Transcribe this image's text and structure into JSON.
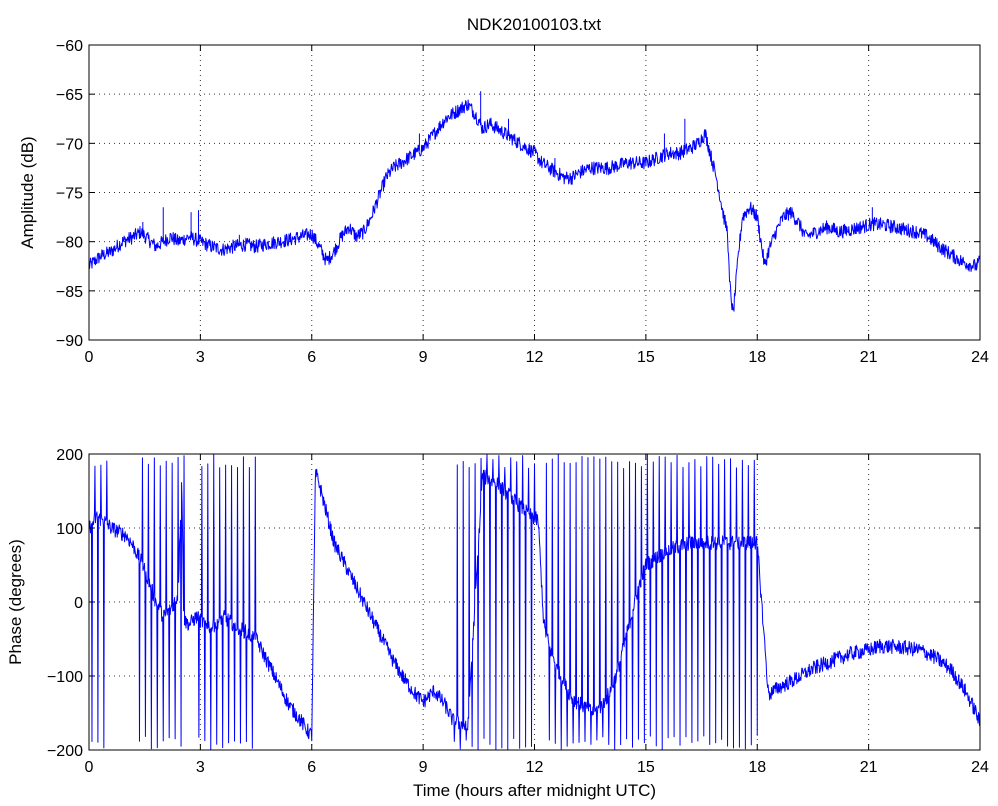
{
  "figure_title": "NDK20100103.txt",
  "colors": {
    "series": "#0000ff",
    "axes": "#000000",
    "background": "#ffffff"
  },
  "chart_data": [
    {
      "type": "line",
      "xlabel": "",
      "ylabel": "Amplitude (dB)",
      "xlim": [
        0,
        24
      ],
      "ylim": [
        -90,
        -60
      ],
      "xticks": [
        0,
        3,
        6,
        9,
        12,
        15,
        18,
        21,
        24
      ],
      "yticks": [
        -90,
        -85,
        -80,
        -75,
        -70,
        -65,
        -60
      ],
      "grid": true,
      "series": [
        {
          "noise": 0.7,
          "x": [
            0,
            0.3,
            0.6,
            0.9,
            1.2,
            1.4,
            1.6,
            1.8,
            2.0,
            2.2,
            2.4,
            2.7,
            3.0,
            3.3,
            3.6,
            3.9,
            4.2,
            4.5,
            4.8,
            5.1,
            5.4,
            5.7,
            6.0,
            6.2,
            6.4,
            6.6,
            6.8,
            7.0,
            7.2,
            7.4,
            7.6,
            7.8,
            8.0,
            8.2,
            8.4,
            8.6,
            8.8,
            9.0,
            9.2,
            9.4,
            9.6,
            9.8,
            10.0,
            10.2,
            10.4,
            10.6,
            10.8,
            11.0,
            11.2,
            11.4,
            11.6,
            11.8,
            12.0,
            12.2,
            12.4,
            12.6,
            12.8,
            13.0,
            13.2,
            13.5,
            14.0,
            14.5,
            15.0,
            15.3,
            15.6,
            15.9,
            16.2,
            16.4,
            16.5,
            16.6,
            16.7,
            16.8,
            16.9,
            17.0,
            17.1,
            17.2,
            17.25,
            17.35,
            17.5,
            17.6,
            17.8,
            18.0,
            18.1,
            18.2,
            18.3,
            18.5,
            18.7,
            18.9,
            19.1,
            19.3,
            19.6,
            19.9,
            20.2,
            20.5,
            20.8,
            21.1,
            21.4,
            21.7,
            22.0,
            22.3,
            22.6,
            22.9,
            23.1,
            23.3,
            23.5,
            23.7,
            23.9,
            24.0
          ],
          "y": [
            -82.5,
            -81.5,
            -81,
            -80,
            -79.5,
            -79,
            -79.8,
            -80.5,
            -80,
            -79.5,
            -80,
            -79.5,
            -80,
            -80.5,
            -80.8,
            -80.5,
            -80.3,
            -80.5,
            -80.2,
            -80,
            -79.8,
            -79.5,
            -79.2,
            -80.5,
            -82,
            -81,
            -79.5,
            -78.5,
            -79.5,
            -79,
            -77.5,
            -75.5,
            -73.5,
            -72.5,
            -72,
            -71.5,
            -71,
            -70.5,
            -69.5,
            -68.5,
            -67.5,
            -67,
            -66.5,
            -66,
            -67,
            -68.5,
            -68,
            -68.5,
            -69,
            -69.5,
            -70,
            -70.5,
            -71,
            -72,
            -72.5,
            -73,
            -73.5,
            -73.5,
            -73,
            -72.5,
            -72.5,
            -72,
            -72,
            -71.5,
            -71,
            -71,
            -70.5,
            -70,
            -69.5,
            -69,
            -70.5,
            -72,
            -73.5,
            -75.5,
            -77.5,
            -79,
            -84,
            -87.5,
            -81,
            -77.5,
            -76.5,
            -77.5,
            -80,
            -82.5,
            -81,
            -79,
            -77.5,
            -77,
            -78,
            -79.5,
            -79,
            -78.5,
            -79,
            -78.8,
            -78.5,
            -78.2,
            -78.3,
            -78.5,
            -78.8,
            -79,
            -79.5,
            -80.5,
            -81,
            -81.5,
            -82,
            -82.3,
            -82.5,
            -82
          ]
        }
      ],
      "spikes": [
        {
          "x": 1.45,
          "y": -78
        },
        {
          "x": 2.0,
          "y": -76.5
        },
        {
          "x": 2.75,
          "y": -77
        },
        {
          "x": 2.95,
          "y": -76.8
        },
        {
          "x": 4.05,
          "y": -79.3
        },
        {
          "x": 8.9,
          "y": -69
        },
        {
          "x": 10.55,
          "y": -64.7
        },
        {
          "x": 11.3,
          "y": -67.5
        },
        {
          "x": 12.55,
          "y": -71.5
        },
        {
          "x": 15.5,
          "y": -69
        },
        {
          "x": 16.05,
          "y": -67.5
        },
        {
          "x": 21.1,
          "y": -76.5
        }
      ]
    },
    {
      "type": "line",
      "xlabel": "Time (hours after midnight UTC)",
      "ylabel": "Phase (degrees)",
      "xlim": [
        0,
        24
      ],
      "ylim": [
        -200,
        200
      ],
      "xticks": [
        0,
        3,
        6,
        9,
        12,
        15,
        18,
        21,
        24
      ],
      "yticks": [
        -200,
        -100,
        0,
        100,
        200
      ],
      "grid": true,
      "series": [
        {
          "noise": 10,
          "x": [
            0,
            0.2,
            0.4,
            0.6,
            0.8,
            1.0,
            1.2,
            1.4,
            1.6,
            1.8,
            2.0,
            2.2,
            2.4,
            2.5,
            2.55,
            2.7,
            2.9,
            3.0,
            3.3,
            3.6,
            3.9,
            4.2,
            4.5,
            4.8,
            5.1,
            5.4,
            5.7,
            5.9,
            6.0,
            6.1,
            6.2,
            6.4,
            6.6,
            6.8,
            7.0,
            7.3,
            7.6,
            7.9,
            8.2,
            8.5,
            8.8,
            9.0,
            9.3,
            9.6,
            9.8,
            10.2,
            10.6,
            11.0,
            11.4,
            11.8,
            12.1,
            12.25,
            12.4,
            12.6,
            12.8,
            13.0,
            13.3,
            13.6,
            13.9,
            14.2,
            14.4,
            14.6,
            14.8,
            15.0,
            15.3,
            15.6,
            15.9,
            16.2,
            16.5,
            16.8,
            17.1,
            17.4,
            17.7,
            18.0,
            18.3,
            18.6,
            19.0,
            19.5,
            20.0,
            20.5,
            21.0,
            21.3,
            21.6,
            22.0,
            22.4,
            22.8,
            23.2,
            23.6,
            23.9,
            24.0
          ],
          "y": [
            100,
            115,
            110,
            100,
            95,
            90,
            75,
            55,
            30,
            0,
            -20,
            -10,
            10,
            170,
            -25,
            -30,
            -20,
            -25,
            -35,
            -20,
            -30,
            -40,
            -50,
            -80,
            -110,
            -140,
            -160,
            -175,
            -180,
            175,
            160,
            120,
            80,
            60,
            40,
            10,
            -20,
            -50,
            -80,
            -105,
            -125,
            -135,
            -120,
            -140,
            -160,
            -170,
            170,
            160,
            140,
            120,
            110,
            -30,
            -60,
            -90,
            -110,
            -130,
            -140,
            -150,
            -135,
            -100,
            -60,
            -20,
            20,
            50,
            60,
            70,
            75,
            80,
            80,
            80,
            80,
            80,
            80,
            80,
            -125,
            -115,
            -105,
            -90,
            -80,
            -70,
            -65,
            -60,
            -60,
            -62,
            -65,
            -75,
            -90,
            -120,
            -150,
            -165
          ]
        }
      ],
      "wraps": [
        [
          0.05,
          0.5
        ],
        [
          1.35,
          2.6
        ],
        [
          2.9,
          4.5
        ],
        [
          9.8,
          12.0
        ],
        [
          12.3,
          18.0
        ]
      ],
      "spikes": [
        {
          "x": 21.3,
          "y": -50
        }
      ]
    }
  ]
}
